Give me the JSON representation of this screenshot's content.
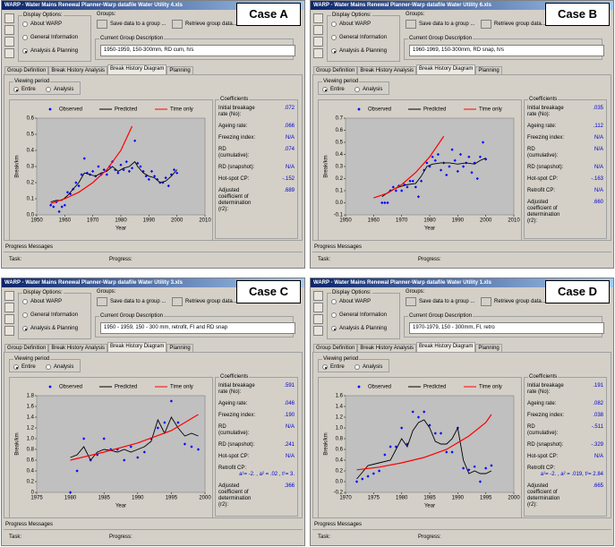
{
  "labels": {
    "display_options": "Display Options:",
    "options": [
      "About WARP",
      "General Information",
      "Analysis & Planning"
    ],
    "groups": "Groups:",
    "save": "Save data to a group ...",
    "retrieve": "Retrieve group data...",
    "current_group": "Current Group Description",
    "tabs": [
      "Group Definition",
      "Break History Analysis",
      "Break History Diagram",
      "Planning"
    ],
    "viewing_period": "Viewing period",
    "periods": [
      "Entire",
      "Analysis"
    ],
    "coefficients": "Coefficients",
    "progress_messages": "Progress Messages",
    "task": "Task:",
    "progress": "Progress:"
  },
  "settings": {
    "selected_option": 2,
    "active_tab": 2,
    "selected_period": 0
  },
  "panels": [
    {
      "window_title": "WARP - Water Mains Renewal Planner-Warp datafile Water Utility 4.xls",
      "case": "Case A",
      "group_description": "1950-1959, 150-300mm, RD cum, h/s",
      "coefficients": [
        {
          "label": "Initial breakage rate (No):",
          "value": ".072"
        },
        {
          "label": "Ageing rate:",
          "value": ".066"
        },
        {
          "label": "Freezing index:",
          "value": "N/A"
        },
        {
          "label": "RD (cumulative):",
          "value": ".074"
        },
        {
          "label": "RD (snapshot):",
          "value": "N/A"
        },
        {
          "label": "Hot-spot CP:",
          "value": "-.152"
        },
        {
          "label": "Adjusted coefficient of determination (r2):",
          "value": ".689"
        }
      ]
    },
    {
      "window_title": "WARP - Water Mains Renewal Planner-Warp datafile Water Utility 6.xls",
      "case": "Case B",
      "group_description": "1960-1969, 150-300mm, RD snap, h/s",
      "coefficients": [
        {
          "label": "Initial breakage rate (No):",
          "value": ".035"
        },
        {
          "label": "Ageing rate:",
          "value": ".112"
        },
        {
          "label": "Freezing index:",
          "value": "N/A"
        },
        {
          "label": "RD (cumulative):",
          "value": "N/A"
        },
        {
          "label": "RD (snapshot):",
          "value": "N/A"
        },
        {
          "label": "Hot-spot CP:",
          "value": "-.163"
        },
        {
          "label": "Retrofit CP:",
          "value": "N/A"
        },
        {
          "label": "Adjusted coefficient of determination (r2):",
          "value": ".660"
        }
      ]
    },
    {
      "window_title": "WARP - Water Mains Renewal Planner-Warp datafile Water Utility 3.xls",
      "case": "Case C",
      "group_description": "1950 - 1959, 150 - 300 mm, retrofit, FI and RD snap",
      "coefficients": [
        {
          "label": "Initial breakage rate (No):",
          "value": ".591"
        },
        {
          "label": "Ageing rate:",
          "value": ".046"
        },
        {
          "label": "Freezing index:",
          "value": ".190"
        },
        {
          "label": "RD (cumulative):",
          "value": "N/A"
        },
        {
          "label": "RD (snapshot):",
          "value": ".241"
        },
        {
          "label": "Hot-spot CP:",
          "value": "N/A"
        },
        {
          "label": "Retrofit CP:",
          "value": "a¹= -2. , a² = .02 , t¹= 3."
        },
        {
          "label": "Adjusted coefficient of determination (r2):",
          "value": ".366"
        }
      ]
    },
    {
      "window_title": "WARP - Water Mains Renewal Planner-Warp datafile Water Utility 1.xls",
      "case": "Case D",
      "group_description": "1970-1979, 150 - 300mm, FI, retro",
      "coefficients": [
        {
          "label": "Initial breakage rate (No):",
          "value": ".191"
        },
        {
          "label": "Ageing rate:",
          "value": ".082"
        },
        {
          "label": "Freezing index:",
          "value": ".038"
        },
        {
          "label": "RD (cumulative):",
          "value": "-.511"
        },
        {
          "label": "RD (snapshot):",
          "value": "-.329"
        },
        {
          "label": "Hot-spot CP:",
          "value": "N/A"
        },
        {
          "label": "Retrofit CP:",
          "value": "a¹= -2. , a² = .019, t¹= 2.84"
        },
        {
          "label": "Adjusted coefficient of determination (r2):",
          "value": ".665"
        }
      ]
    }
  ],
  "chart_data": [
    {
      "type": "line",
      "x_label": "Year",
      "y_label": "Break/km",
      "xlim": [
        1950,
        2010
      ],
      "xticks": [
        1950,
        1960,
        1970,
        1980,
        1990,
        2000,
        2010
      ],
      "ylim": [
        0,
        0.6
      ],
      "yticks": [
        {
          "value": 0,
          "label": "0.0"
        },
        0.1,
        0.2,
        0.3,
        0.4,
        0.5,
        0.6
      ],
      "plot_color": "#c0c0c0",
      "series": [
        {
          "name": "Observed",
          "color": "#0000ff",
          "style": "markers",
          "x": [
            1955,
            1956,
            1957,
            1958,
            1959,
            1960,
            1961,
            1962,
            1963,
            1964,
            1965,
            1966,
            1967,
            1968,
            1969,
            1970,
            1971,
            1972,
            1973,
            1974,
            1975,
            1976,
            1977,
            1978,
            1979,
            1980,
            1981,
            1982,
            1983,
            1984,
            1985,
            1986,
            1987,
            1988,
            1989,
            1990,
            1991,
            1992,
            1993,
            1994,
            1995,
            1996,
            1997,
            1998,
            1999,
            2000
          ],
          "values": [
            0.06,
            0.05,
            0.08,
            0.02,
            0.05,
            0.06,
            0.14,
            0.13,
            0.16,
            0.2,
            0.18,
            0.25,
            0.35,
            0.26,
            0.25,
            0.27,
            0.24,
            0.3,
            0.25,
            0.28,
            0.25,
            0.3,
            0.33,
            0.28,
            0.26,
            0.31,
            0.28,
            0.33,
            0.27,
            0.29,
            0.46,
            0.32,
            0.3,
            0.27,
            0.24,
            0.22,
            0.27,
            0.24,
            0.22,
            0.2,
            0.2,
            0.23,
            0.18,
            0.25,
            0.28,
            0.26
          ]
        },
        {
          "name": "Predicted",
          "color": "#000000",
          "style": "line",
          "x": [
            1955,
            1957,
            1959,
            1961,
            1963,
            1965,
            1967,
            1969,
            1971,
            1973,
            1975,
            1977,
            1979,
            1981,
            1983,
            1985,
            1986,
            1988,
            1990,
            1992,
            1994,
            1996,
            1998,
            2000
          ],
          "values": [
            0.08,
            0.09,
            0.09,
            0.12,
            0.16,
            0.2,
            0.26,
            0.25,
            0.24,
            0.26,
            0.27,
            0.3,
            0.27,
            0.29,
            0.3,
            0.33,
            0.3,
            0.26,
            0.24,
            0.23,
            0.2,
            0.21,
            0.24,
            0.28
          ]
        },
        {
          "name": "Time only",
          "color": "#ff0000",
          "style": "line",
          "x": [
            1955,
            1960,
            1965,
            1970,
            1975,
            1980,
            1984
          ],
          "values": [
            0.07,
            0.1,
            0.14,
            0.2,
            0.28,
            0.4,
            0.55
          ]
        }
      ]
    },
    {
      "type": "line",
      "x_label": "Year",
      "y_label": "Break/km",
      "xlim": [
        1950,
        2010
      ],
      "xticks": [
        1950,
        1960,
        1970,
        1980,
        1990,
        2000,
        2010
      ],
      "ylim": [
        -0.1,
        0.7
      ],
      "yticks": [
        -0.1,
        {
          "value": 0,
          "label": "0.0"
        },
        0.1,
        0.2,
        0.3,
        0.4,
        0.5,
        0.6,
        0.7
      ],
      "plot_color": "#c0c0c0",
      "series": [
        {
          "name": "Observed",
          "color": "#0000ff",
          "style": "markers",
          "x": [
            1963,
            1964,
            1965,
            1966,
            1967,
            1968,
            1969,
            1970,
            1971,
            1972,
            1973,
            1974,
            1975,
            1976,
            1977,
            1978,
            1979,
            1980,
            1981,
            1982,
            1983,
            1984,
            1985,
            1986,
            1987,
            1988,
            1989,
            1990,
            1991,
            1992,
            1993,
            1994,
            1995,
            1996,
            1997,
            1998,
            1999,
            2000
          ],
          "values": [
            0,
            0,
            0,
            0.1,
            0.13,
            0.1,
            0.14,
            0.1,
            0.15,
            0.13,
            0.18,
            0.18,
            0.13,
            0.05,
            0.18,
            0.27,
            0.33,
            0.3,
            0.38,
            0.35,
            0.4,
            0.27,
            0.33,
            0.23,
            0.3,
            0.44,
            0.35,
            0.26,
            0.4,
            0.3,
            0.33,
            0.38,
            0.25,
            0.33,
            0.2,
            0.38,
            0.5,
            0.36
          ]
        },
        {
          "name": "Predicted",
          "color": "#000000",
          "style": "line",
          "x": [
            1963,
            1966,
            1969,
            1972,
            1975,
            1977,
            1979,
            1981,
            1984,
            1987,
            1990,
            1993,
            1996,
            1998,
            2000
          ],
          "values": [
            0.05,
            0.1,
            0.13,
            0.15,
            0.16,
            0.22,
            0.3,
            0.32,
            0.33,
            0.33,
            0.32,
            0.33,
            0.32,
            0.35,
            0.37
          ]
        },
        {
          "name": "Time only",
          "color": "#ff0000",
          "style": "line",
          "x": [
            1960,
            1965,
            1970,
            1975,
            1980,
            1985
          ],
          "values": [
            0.04,
            0.08,
            0.15,
            0.25,
            0.38,
            0.55
          ]
        }
      ]
    },
    {
      "type": "line",
      "x_label": "Year",
      "y_label": "Break/km",
      "xlim": [
        1975,
        2000
      ],
      "xticks": [
        1975,
        1980,
        1985,
        1990,
        1995,
        2000
      ],
      "ylim": [
        0,
        1.8
      ],
      "yticks": [
        0,
        0.2,
        0.4,
        0.6,
        0.8,
        {
          "value": 1,
          "label": "1.0"
        },
        1.2,
        1.4,
        1.6,
        1.8
      ],
      "plot_color": "#c0c0c0",
      "series": [
        {
          "name": "Observed",
          "color": "#0000ff",
          "style": "markers",
          "x": [
            1980,
            1981,
            1982,
            1983,
            1984,
            1985,
            1986,
            1987,
            1988,
            1989,
            1990,
            1991,
            1992,
            1993,
            1994,
            1995,
            1996,
            1997,
            1998,
            1999
          ],
          "values": [
            0,
            0.4,
            1,
            0.6,
            0.7,
            1,
            0.8,
            0.8,
            0.6,
            0.85,
            0.65,
            0.75,
            1,
            1.2,
            1.3,
            1.7,
            1.3,
            0.9,
            0.85,
            0.8
          ]
        },
        {
          "name": "Predicted",
          "color": "#000000",
          "style": "line",
          "x": [
            1980,
            1981,
            1982,
            1983,
            1984,
            1985,
            1986,
            1987,
            1988,
            1989,
            1990,
            1991,
            1992,
            1993,
            1994,
            1995,
            1996,
            1997,
            1998,
            1999
          ],
          "values": [
            0.65,
            0.7,
            0.85,
            0.6,
            0.75,
            0.8,
            0.78,
            0.75,
            0.8,
            0.75,
            0.8,
            0.85,
            0.95,
            1.35,
            1.1,
            1.4,
            1.2,
            1.05,
            1.1,
            1.05
          ]
        },
        {
          "name": "Time only",
          "color": "#ff0000",
          "style": "line",
          "x": [
            1980,
            1985,
            1990,
            1995,
            1999
          ],
          "values": [
            0.6,
            0.75,
            0.92,
            1.15,
            1.45
          ]
        }
      ]
    },
    {
      "type": "line",
      "x_label": "Year",
      "y_label": "Break/km",
      "xlim": [
        1970,
        2000
      ],
      "xticks": [
        1970,
        1975,
        1980,
        1985,
        1990,
        1995,
        2000
      ],
      "ylim": [
        -0.2,
        1.6
      ],
      "yticks": [
        -0.2,
        {
          "value": 0,
          "label": "0.0"
        },
        0.2,
        0.4,
        0.6,
        0.8,
        {
          "value": 1,
          "label": "1.0"
        },
        1.2,
        1.4,
        1.6
      ],
      "plot_color": "#c0c0c0",
      "series": [
        {
          "name": "Observed",
          "color": "#0000ff",
          "style": "markers",
          "x": [
            1972,
            1973,
            1974,
            1975,
            1976,
            1977,
            1978,
            1979,
            1980,
            1981,
            1982,
            1983,
            1984,
            1985,
            1986,
            1987,
            1988,
            1989,
            1990,
            1991,
            1992,
            1993,
            1994,
            1995,
            1996
          ],
          "values": [
            0,
            0.05,
            0.1,
            0.15,
            0.2,
            0.5,
            0.65,
            0.65,
            1,
            0.7,
            1.3,
            1.2,
            1.3,
            1.05,
            0.9,
            0.9,
            0.55,
            0.55,
            1,
            0.25,
            0.22,
            0.28,
            0,
            0.25,
            0.3
          ]
        },
        {
          "name": "Predicted",
          "color": "#000000",
          "style": "line",
          "x": [
            1972,
            1974,
            1976,
            1978,
            1979,
            1980,
            1981,
            1982,
            1983,
            1984,
            1985,
            1986,
            1987,
            1988,
            1989,
            1990,
            1991,
            1992,
            1993,
            1994,
            1995,
            1996
          ],
          "values": [
            0.05,
            0.3,
            0.35,
            0.4,
            0.6,
            0.8,
            0.65,
            0.95,
            1.1,
            1.15,
            1,
            0.75,
            0.7,
            0.7,
            0.8,
            1,
            0.4,
            0.15,
            0.2,
            0.15,
            0.15,
            0.2
          ]
        },
        {
          "name": "Time only",
          "color": "#ff0000",
          "style": "line",
          "x": [
            1972,
            1976,
            1980,
            1984,
            1988,
            1992,
            1995,
            1996
          ],
          "values": [
            0.22,
            0.27,
            0.35,
            0.45,
            0.6,
            0.85,
            1.1,
            1.25
          ]
        }
      ]
    }
  ]
}
